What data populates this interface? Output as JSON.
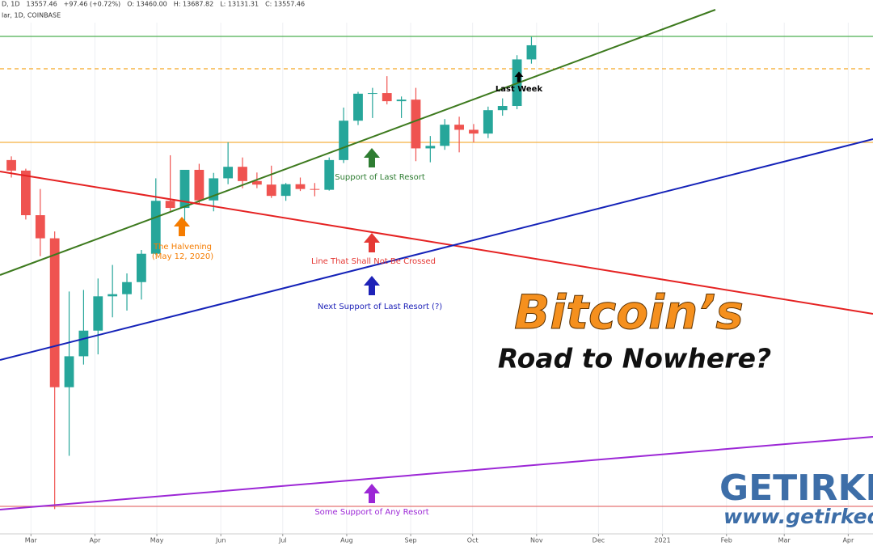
{
  "chart_data": {
    "type": "candlestick",
    "header": [
      "D, 1D",
      "13557.46",
      "+97.46 (+0.72%)",
      "O: 13460.00",
      "H: 13687.82",
      "L: 13131.31",
      "C: 13557.46"
    ],
    "subheader": "lar, 1D, COINBASE",
    "log_scale": true,
    "ylim": [
      3600,
      15000
    ],
    "xlim": [
      "2020-02-15",
      "2021-04-13"
    ],
    "xticks": [
      {
        "value": "2020-03-01",
        "label": "Mar"
      },
      {
        "value": "2020-04-01",
        "label": "Apr"
      },
      {
        "value": "2020-05-01",
        "label": "May"
      },
      {
        "value": "2020-06-01",
        "label": "Jun"
      },
      {
        "value": "2020-07-01",
        "label": "Jul"
      },
      {
        "value": "2020-08-01",
        "label": "Aug"
      },
      {
        "value": "2020-09-01",
        "label": "Sep"
      },
      {
        "value": "2020-10-01",
        "label": "Oct"
      },
      {
        "value": "2020-11-01",
        "label": "Nov"
      },
      {
        "value": "2020-12-01",
        "label": "Dec"
      },
      {
        "value": "2021-01-01",
        "label": "2021"
      },
      {
        "value": "2021-02-01",
        "label": "Feb"
      },
      {
        "value": "2021-03-01",
        "label": "Mar"
      },
      {
        "value": "2021-04-01",
        "label": "Apr"
      }
    ],
    "grid": true,
    "up_color": "#26a69a",
    "down_color": "#ef5350",
    "x": [
      "2020-02-17",
      "2020-02-24",
      "2020-03-02",
      "2020-03-09",
      "2020-03-16",
      "2020-03-23",
      "2020-03-30",
      "2020-04-06",
      "2020-04-13",
      "2020-04-20",
      "2020-04-27",
      "2020-05-04",
      "2020-05-11",
      "2020-05-18",
      "2020-05-25",
      "2020-06-01",
      "2020-06-08",
      "2020-06-15",
      "2020-06-22",
      "2020-06-29",
      "2020-07-06",
      "2020-07-13",
      "2020-07-20",
      "2020-07-27",
      "2020-08-03",
      "2020-08-10",
      "2020-08-17",
      "2020-08-24",
      "2020-08-31",
      "2020-09-07",
      "2020-09-14",
      "2020-09-21",
      "2020-09-28",
      "2020-10-05",
      "2020-10-12",
      "2020-10-19",
      "2020-10-26"
    ],
    "open": [
      9930,
      9650,
      8550,
      8030,
      5360,
      5830,
      6250,
      6860,
      6900,
      7130,
      7700,
      8890,
      8720,
      9670,
      8900,
      9450,
      9750,
      9380,
      9290,
      9010,
      9300,
      9180,
      9160,
      9930,
      11050,
      11890,
      11910,
      11650,
      11700,
      10250,
      10320,
      10930,
      10780,
      10670,
      11370,
      11500,
      13050
    ],
    "high": [
      10030,
      9700,
      9180,
      8180,
      6950,
      6980,
      7200,
      7470,
      7300,
      7780,
      9450,
      10060,
      9590,
      9830,
      9590,
      10420,
      10000,
      9600,
      9780,
      9330,
      9470,
      9330,
      10000,
      11450,
      11950,
      12080,
      12470,
      11800,
      12080,
      10600,
      11100,
      11170,
      10950,
      11480,
      11740,
      13200,
      13870
    ],
    "low": [
      9470,
      8450,
      7650,
      3850,
      4450,
      5700,
      5860,
      6480,
      6600,
      6800,
      7680,
      8650,
      8200,
      8820,
      8640,
      9300,
      9200,
      9200,
      8960,
      8890,
      9130,
      9000,
      9140,
      9850,
      10920,
      11130,
      11550,
      11130,
      9900,
      9870,
      10210,
      10140,
      10420,
      10540,
      11200,
      11400,
      12900
    ],
    "close": [
      9650,
      8550,
      8030,
      5360,
      5830,
      6250,
      6860,
      6900,
      7130,
      7700,
      8890,
      8720,
      9670,
      8900,
      9450,
      9750,
      9380,
      9290,
      9010,
      9300,
      9180,
      9160,
      9930,
      11050,
      11890,
      11910,
      11650,
      11700,
      10250,
      10320,
      10930,
      10780,
      10670,
      11370,
      11500,
      13050,
      13560
    ],
    "annotations": [
      {
        "text": "Last Week",
        "color": "#000000"
      },
      {
        "text": "Support of Last Resort",
        "color": "#2e7d32"
      },
      {
        "text": "The Halvening",
        "color": "#f57c00"
      },
      {
        "text": "(May 12, 2020)",
        "color": "#f57c00"
      },
      {
        "text": "Line That Shall Not Be Crossed",
        "color": "#e53935"
      },
      {
        "text": "Next Support of Last Resort (?)",
        "color": "#1e22b8"
      },
      {
        "text": "Some Support of Any Resort",
        "color": "#9c27d6"
      }
    ],
    "headline": [
      "Bitcoin’s",
      "Road to Nowhere?"
    ],
    "brand": [
      "GETIRKED",
      "www.getirked.co"
    ]
  }
}
